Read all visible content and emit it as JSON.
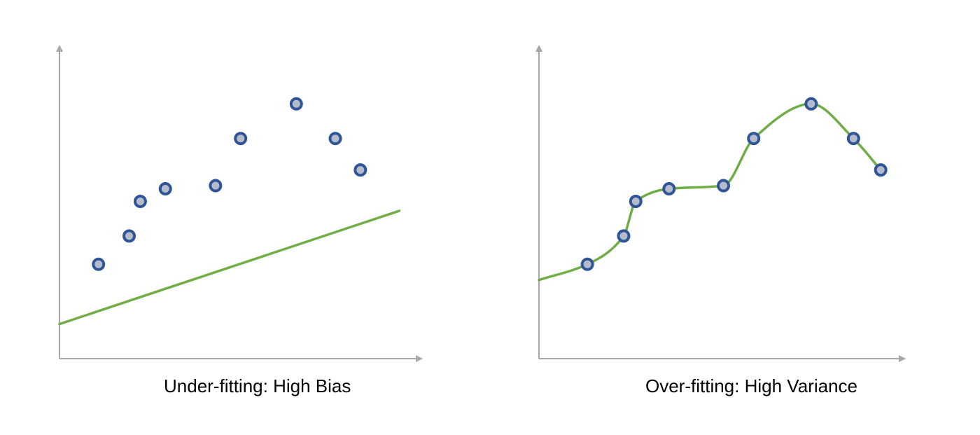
{
  "colors": {
    "axis": "#a6a6a6",
    "curve": "#70ad47",
    "point_fill": "#b4bccc",
    "point_edge": "#2f5597"
  },
  "chart_data": [
    {
      "type": "scatter",
      "title": "Under-fitting: High Bias",
      "xlabel": "",
      "ylabel": "",
      "grid": false,
      "xlim": [
        0,
        13
      ],
      "ylim": [
        0,
        11
      ],
      "points": [
        {
          "x": 1.4,
          "y": 3.0
        },
        {
          "x": 2.5,
          "y": 3.9
        },
        {
          "x": 2.9,
          "y": 5.0
        },
        {
          "x": 3.8,
          "y": 5.4
        },
        {
          "x": 5.6,
          "y": 5.5
        },
        {
          "x": 6.5,
          "y": 7.0
        },
        {
          "x": 8.5,
          "y": 8.1
        },
        {
          "x": 9.9,
          "y": 7.0
        },
        {
          "x": 10.8,
          "y": 6.0
        }
      ],
      "fit": {
        "kind": "linear",
        "x": [
          0,
          12.2
        ],
        "y": [
          1.1,
          4.7
        ]
      }
    },
    {
      "type": "scatter",
      "title": "Over-fitting: High Variance",
      "xlabel": "",
      "ylabel": "",
      "grid": false,
      "xlim": [
        0,
        13
      ],
      "ylim": [
        0,
        11
      ],
      "points": [
        {
          "x": 1.6,
          "y": 3.0
        },
        {
          "x": 2.8,
          "y": 3.9
        },
        {
          "x": 3.2,
          "y": 5.0
        },
        {
          "x": 4.3,
          "y": 5.4
        },
        {
          "x": 6.1,
          "y": 5.5
        },
        {
          "x": 7.1,
          "y": 7.0
        },
        {
          "x": 9.0,
          "y": 8.1
        },
        {
          "x": 10.4,
          "y": 7.0
        },
        {
          "x": 11.3,
          "y": 6.0
        }
      ],
      "fit": {
        "kind": "interpolating-spline",
        "x": [
          0,
          1.6,
          2.8,
          3.2,
          4.3,
          6.1,
          7.1,
          9.0,
          10.4,
          11.3
        ],
        "y": [
          2.5,
          3.0,
          3.9,
          5.0,
          5.4,
          5.5,
          7.0,
          8.1,
          7.0,
          6.0
        ]
      }
    }
  ]
}
